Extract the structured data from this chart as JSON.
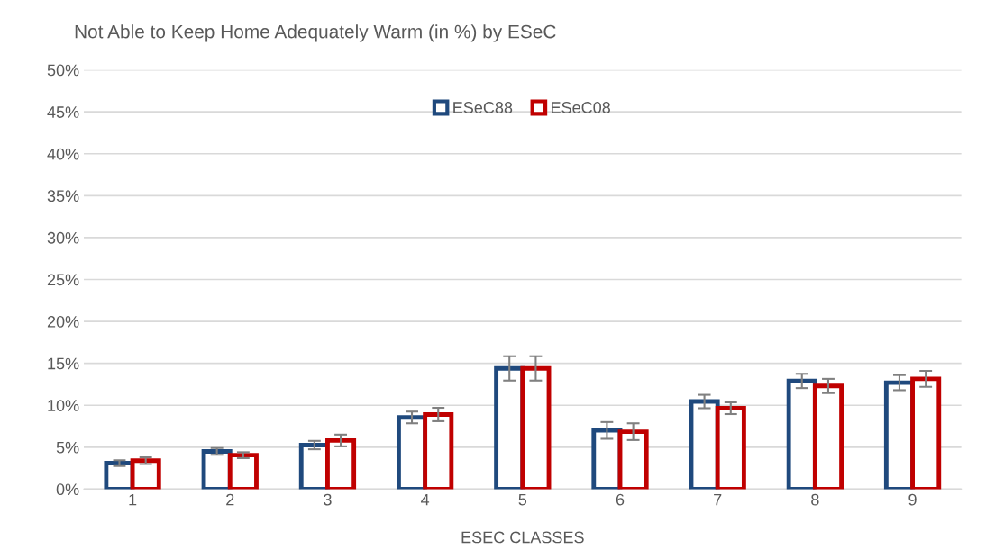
{
  "chart_data": {
    "type": "bar",
    "title": "Not Able to Keep Home Adequately Warm (in %) by ESeC",
    "xlabel": "ESEC CLASSES",
    "categories": [
      "1",
      "2",
      "3",
      "4",
      "5",
      "6",
      "7",
      "8",
      "9"
    ],
    "series": [
      {
        "name": "ESeC88",
        "color": "#1f497d",
        "values": [
          3.1,
          4.5,
          5.25,
          8.55,
          14.4,
          7.0,
          10.45,
          12.9,
          12.7
        ],
        "errors": [
          0.35,
          0.4,
          0.5,
          0.7,
          1.45,
          1.0,
          0.8,
          0.85,
          0.9
        ]
      },
      {
        "name": "ESeC08",
        "color": "#c00000",
        "values": [
          3.4,
          4.05,
          5.8,
          8.9,
          14.4,
          6.85,
          9.65,
          12.3,
          13.15
        ],
        "errors": [
          0.4,
          0.35,
          0.7,
          0.8,
          1.45,
          1.0,
          0.7,
          0.85,
          0.95
        ]
      }
    ],
    "ylim": [
      0,
      50
    ],
    "yticks": [
      {
        "value": 0,
        "label": "0%"
      },
      {
        "value": 5,
        "label": "5%"
      },
      {
        "value": 10,
        "label": "10%"
      },
      {
        "value": 15,
        "label": "15%"
      },
      {
        "value": 20,
        "label": "20%"
      },
      {
        "value": 25,
        "label": "25%"
      },
      {
        "value": 30,
        "label": "30%"
      },
      {
        "value": 35,
        "label": "35%"
      },
      {
        "value": 40,
        "label": "40%"
      },
      {
        "value": 45,
        "label": "45%"
      },
      {
        "value": 50,
        "label": "50%"
      }
    ],
    "grid": "y",
    "legend": "top"
  }
}
